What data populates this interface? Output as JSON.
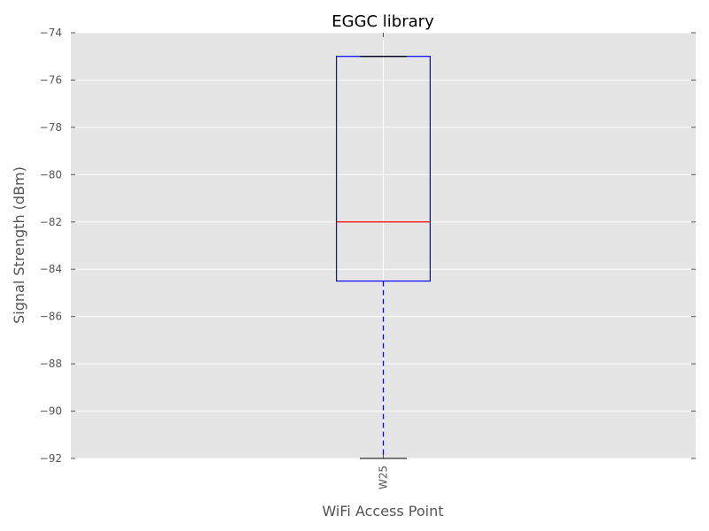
{
  "chart_data": {
    "type": "boxplot",
    "title": "EGGC library",
    "xlabel": "WiFi Access Point",
    "ylabel": "Signal Strength (dBm)",
    "ylim": [
      -92,
      -74
    ],
    "yticks": [
      -74,
      -76,
      -78,
      -80,
      -82,
      -84,
      -86,
      -88,
      -90,
      -92
    ],
    "ytick_labels": [
      "−74",
      "−76",
      "−78",
      "−80",
      "−82",
      "−84",
      "−86",
      "−88",
      "−90",
      "−92"
    ],
    "grid": true,
    "categories": [
      "W25"
    ],
    "boxes": [
      {
        "label": "W25",
        "whisker_high": -75,
        "q3": -75,
        "median": -82,
        "q1": -84.5,
        "whisker_low": -92
      }
    ],
    "colors": {
      "plot_background": "#e5e5e5",
      "grid": "#ffffff",
      "box": "#0000ff",
      "median": "#ff0000",
      "whisker": "#0000ff",
      "cap": "#000000"
    }
  }
}
